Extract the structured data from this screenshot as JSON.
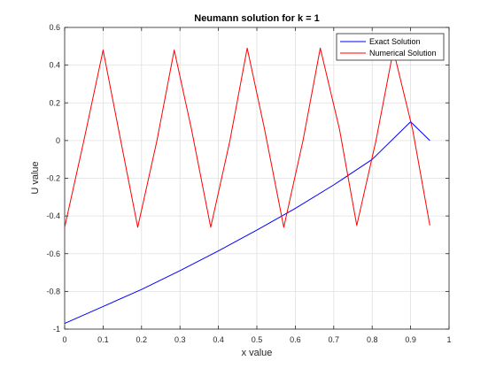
{
  "chart_data": {
    "type": "line",
    "title": "Neumann solution for k = 1",
    "xlabel": "x value",
    "ylabel": "U value",
    "xlim": [
      0,
      1
    ],
    "ylim": [
      -1,
      0.6
    ],
    "xticks": [
      0,
      0.1,
      0.2,
      0.3,
      0.4,
      0.5,
      0.6,
      0.7,
      0.8,
      0.9,
      1
    ],
    "xtick_labels": [
      "0",
      "0.1",
      "0.2",
      "0.3",
      "0.4",
      "0.5",
      "0.6",
      "0.7",
      "0.8",
      "0.9",
      "1"
    ],
    "yticks": [
      -1,
      -0.8,
      -0.6,
      -0.4,
      -0.2,
      0,
      0.2,
      0.4,
      0.6
    ],
    "ytick_labels": [
      "-1",
      "-0.8",
      "-0.6",
      "-0.4",
      "-0.2",
      "0",
      "0.2",
      "0.4",
      "0.6"
    ],
    "grid": true,
    "legend_position": "top-right",
    "series": [
      {
        "name": "Exact Solution",
        "color": "#0000ff",
        "x": [
          0,
          0.1,
          0.2,
          0.3,
          0.4,
          0.5,
          0.6,
          0.7,
          0.8,
          0.9,
          0.95
        ],
        "y": [
          -0.97,
          -0.88,
          -0.79,
          -0.69,
          -0.585,
          -0.475,
          -0.36,
          -0.235,
          -0.1,
          0.1,
          0.0
        ]
      },
      {
        "name": "Numerical Solution",
        "color": "#ff0000",
        "x": [
          0,
          0.05,
          0.1,
          0.14,
          0.19,
          0.24,
          0.285,
          0.33,
          0.38,
          0.43,
          0.475,
          0.52,
          0.57,
          0.62,
          0.665,
          0.715,
          0.76,
          0.81,
          0.855,
          0.905,
          0.95
        ],
        "y": [
          -0.46,
          0.0,
          0.48,
          0.06,
          -0.46,
          0.0,
          0.48,
          0.06,
          -0.46,
          0.0,
          0.49,
          0.06,
          -0.46,
          0.0,
          0.49,
          0.06,
          -0.45,
          0.0,
          0.48,
          0.06,
          -0.45
        ]
      }
    ]
  }
}
